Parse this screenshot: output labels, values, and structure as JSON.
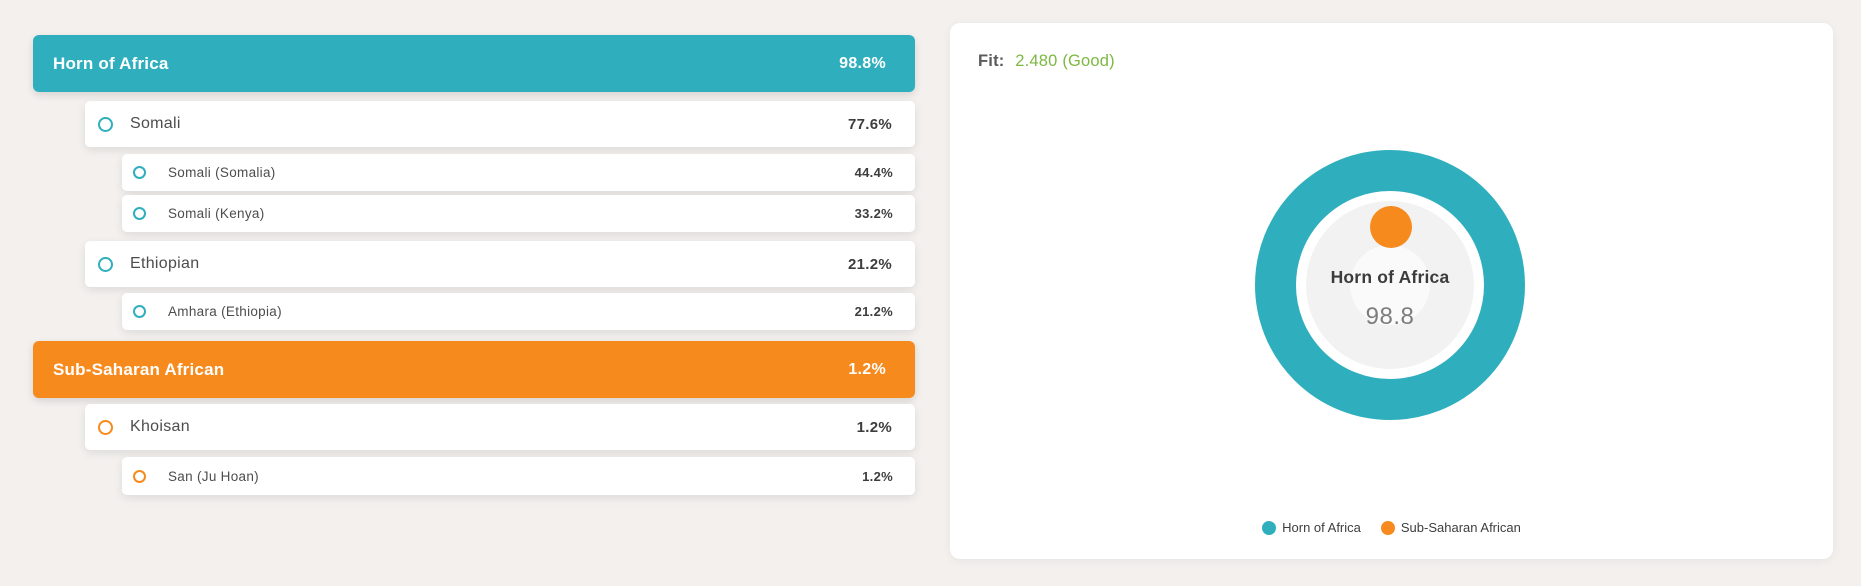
{
  "colors": {
    "teal": "#2fafbd",
    "orange": "#f78a1d",
    "green": "#7cb842",
    "bg": "#f3f0ee"
  },
  "breakdown": {
    "rows": [
      {
        "label": "Horn of Africa",
        "value": "98.8%",
        "type": "header",
        "color": "teal"
      },
      {
        "label": "Somali",
        "value": "77.6%",
        "type": "item",
        "level": 1,
        "color": "teal"
      },
      {
        "label": "Somali (Somalia)",
        "value": "44.4%",
        "type": "item",
        "level": 2,
        "color": "teal"
      },
      {
        "label": "Somali (Kenya)",
        "value": "33.2%",
        "type": "item",
        "level": 2,
        "color": "teal"
      },
      {
        "label": "Ethiopian",
        "value": "21.2%",
        "type": "item",
        "level": 1,
        "color": "teal"
      },
      {
        "label": "Amhara (Ethiopia)",
        "value": "21.2%",
        "type": "item",
        "level": 2,
        "color": "teal"
      },
      {
        "label": "Sub-Saharan African",
        "value": "1.2%",
        "type": "header",
        "color": "orange"
      },
      {
        "label": "Khoisan",
        "value": "1.2%",
        "type": "item",
        "level": 1,
        "color": "orange"
      },
      {
        "label": "San (Ju Hoan)",
        "value": "1.2%",
        "type": "item",
        "level": 2,
        "color": "orange"
      }
    ]
  },
  "panel": {
    "fit_label": "Fit:",
    "fit_value": "2.480 (Good)",
    "donut": {
      "center_label": "Horn of Africa",
      "center_value": "98.8"
    },
    "legend": [
      {
        "label": "Horn of Africa",
        "color": "#2fafbd"
      },
      {
        "label": "Sub-Saharan African",
        "color": "#f78a1d"
      }
    ]
  },
  "chart_data": {
    "type": "pie",
    "title": "",
    "series": [
      {
        "name": "Horn of Africa",
        "value": 98.8,
        "color": "#2fafbd"
      },
      {
        "name": "Sub-Saharan African",
        "value": 1.2,
        "color": "#f78a1d"
      }
    ],
    "center_label": "Horn of Africa",
    "center_value": 98.8,
    "legend_position": "bottom"
  }
}
